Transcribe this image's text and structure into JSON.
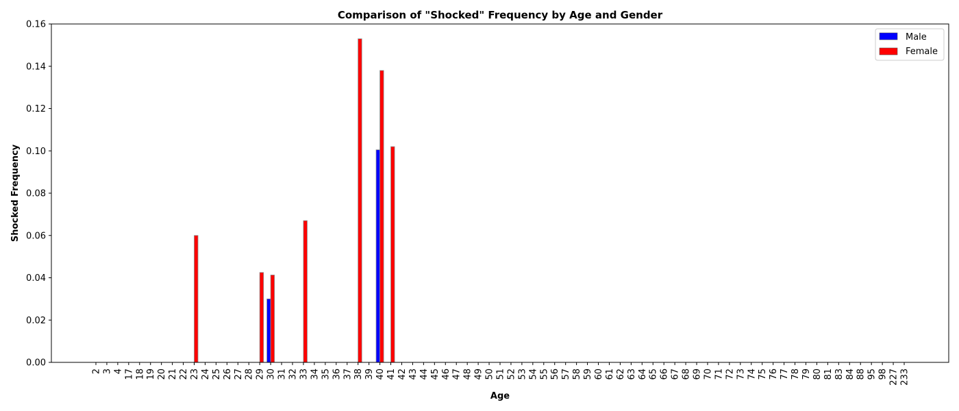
{
  "chart_data": {
    "type": "bar",
    "title": "Comparison of \"Shocked\" Frequency by Age and Gender",
    "xlabel": "Age",
    "ylabel": "Shocked Frequency",
    "ylim": [
      0,
      0.16
    ],
    "yticks": [
      "0.00",
      "0.02",
      "0.04",
      "0.06",
      "0.08",
      "0.10",
      "0.12",
      "0.14",
      "0.16"
    ],
    "legend_position": "top-right",
    "categories": [
      "2",
      "3",
      "4",
      "17",
      "18",
      "19",
      "20",
      "21",
      "22",
      "23",
      "24",
      "25",
      "26",
      "27",
      "28",
      "29",
      "30",
      "31",
      "32",
      "33",
      "34",
      "35",
      "36",
      "37",
      "38",
      "39",
      "40",
      "41",
      "42",
      "43",
      "44",
      "45",
      "46",
      "47",
      "48",
      "49",
      "50",
      "51",
      "52",
      "53",
      "54",
      "55",
      "56",
      "57",
      "58",
      "59",
      "60",
      "61",
      "62",
      "63",
      "64",
      "65",
      "66",
      "67",
      "68",
      "69",
      "70",
      "71",
      "72",
      "73",
      "74",
      "75",
      "76",
      "77",
      "78",
      "79",
      "80",
      "81",
      "83",
      "84",
      "88",
      "95",
      "98",
      "227",
      "233"
    ],
    "series": [
      {
        "name": "Male",
        "color": "#0000ff",
        "values": [
          0,
          0,
          0,
          0,
          0,
          0,
          0,
          0,
          0,
          0,
          0,
          0,
          0,
          0,
          0,
          0,
          0.03,
          0,
          0,
          0,
          0,
          0,
          0,
          0,
          0,
          0,
          0.1005,
          0,
          0,
          0,
          0,
          0,
          0,
          0,
          0,
          0,
          0,
          0,
          0,
          0,
          0,
          0,
          0,
          0,
          0,
          0,
          0,
          0,
          0,
          0,
          0,
          0,
          0,
          0,
          0,
          0,
          0,
          0,
          0,
          0,
          0,
          0,
          0,
          0,
          0,
          0,
          0,
          0,
          0,
          0,
          0,
          0,
          0,
          0,
          0
        ]
      },
      {
        "name": "Female",
        "color": "#ff0000",
        "values": [
          0,
          0,
          0,
          0,
          0,
          0,
          0,
          0,
          0,
          0.06,
          0,
          0,
          0,
          0,
          0,
          0.0425,
          0.0413,
          0,
          0,
          0.067,
          0,
          0,
          0,
          0,
          0.153,
          0,
          0.138,
          0.102,
          0,
          0,
          0,
          0,
          0,
          0,
          0,
          0,
          0,
          0,
          0,
          0,
          0,
          0,
          0,
          0,
          0,
          0,
          0,
          0,
          0,
          0,
          0,
          0,
          0,
          0,
          0,
          0,
          0,
          0,
          0,
          0,
          0,
          0,
          0,
          0,
          0,
          0,
          0,
          0,
          0,
          0,
          0,
          0,
          0,
          0,
          0
        ]
      }
    ]
  }
}
